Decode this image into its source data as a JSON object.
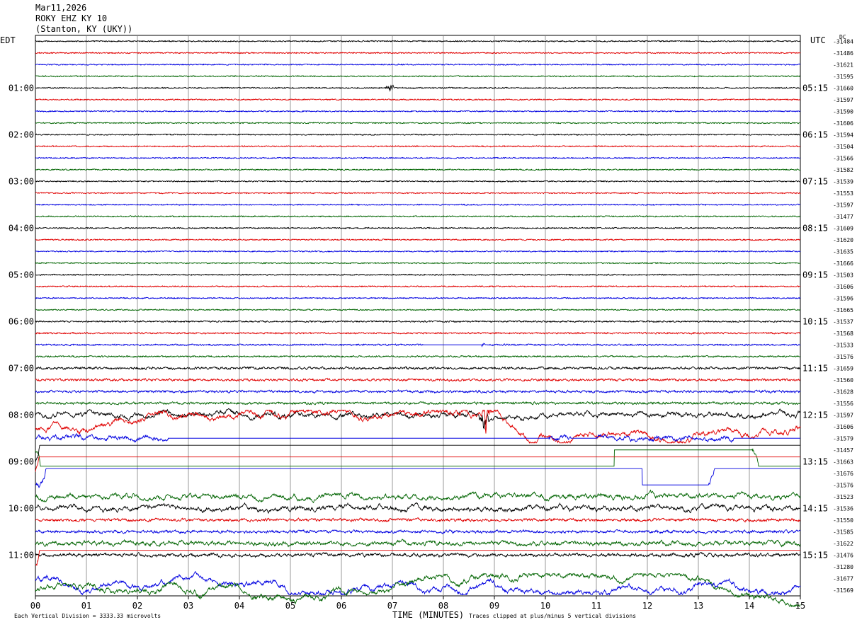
{
  "header": {
    "date": "Mar11,2026",
    "station": "ROKY EHZ KY 10",
    "location": "(Stanton, KY (UKY))"
  },
  "left_tz": "EDT",
  "right_tz": "UTC",
  "dc_label": "DC",
  "footer": {
    "scale_note": "Each Vertical Division = 3333.33 microvolts",
    "xlabel": "TIME (MINUTES)",
    "clip_note": "Traces clipped at plus/minus 5 vertical divisions"
  },
  "colors": {
    "trace_cycle": [
      "#000000",
      "#e00000",
      "#0000e0",
      "#006400"
    ],
    "grid": "#808080"
  },
  "chart_data": {
    "type": "line",
    "xlabel": "TIME (MINUTES)",
    "xlim": [
      0,
      15
    ],
    "x_ticks": [
      "00",
      "01",
      "02",
      "03",
      "04",
      "05",
      "06",
      "07",
      "08",
      "09",
      "10",
      "11",
      "12",
      "13",
      "14",
      "15"
    ],
    "trace_minutes": 15,
    "left_hour_labels": [
      "01:00",
      "02:00",
      "03:00",
      "04:00",
      "05:00",
      "06:00",
      "07:00",
      "08:00",
      "09:00",
      "10:00",
      "11:00"
    ],
    "right_hour_labels": [
      "05:15",
      "06:15",
      "07:15",
      "08:15",
      "09:15",
      "10:15",
      "11:15",
      "12:15",
      "13:15",
      "14:15",
      "15:15"
    ],
    "dc_offsets": [
      "-31484",
      "-31486",
      "-31621",
      "-31595",
      "-31660",
      "-31597",
      "-31590",
      "-31606",
      "-31594",
      "-31504",
      "-31566",
      "-31582",
      "-31539",
      "-31553",
      "-31597",
      "-31477",
      "-31609",
      "-31620",
      "-31635",
      "-31666",
      "-31503",
      "-31606",
      "-31596",
      "-31665",
      "-31537",
      "-31568",
      "-31533",
      "-31576",
      "-31659",
      "-31560",
      "-31628",
      "-31556",
      "-31597",
      "-31606",
      "-31579",
      "-31457",
      "-31663",
      "-31676",
      "-31576",
      "-31523",
      "-31536",
      "-31550",
      "-31585",
      "-31622",
      "-31476",
      "-31280",
      "-31677",
      "-31569"
    ],
    "trace_activity": [
      0.5,
      0.5,
      0.5,
      0.5,
      0.5,
      0.5,
      0.5,
      0.5,
      0.5,
      0.5,
      0.5,
      0.5,
      0.5,
      0.5,
      0.5,
      0.5,
      0.5,
      0.5,
      0.5,
      0.5,
      0.5,
      0.5,
      0.5,
      0.5,
      0.6,
      0.6,
      0.6,
      0.6,
      0.8,
      0.8,
      0.8,
      0.8,
      1.2,
      1.3,
      1.2,
      1.6,
      1.6,
      1.6,
      1.5,
      1.2,
      1.2,
      0.9,
      0.9,
      1.1,
      1.0,
      1.6,
      1.3,
      1.3
    ],
    "events": [
      {
        "trace": 33,
        "minute": 8.85,
        "amplitude": 5
      },
      {
        "trace": 32,
        "minute": 8.8,
        "amplitude": 4
      },
      {
        "trace": 45,
        "minute": 7.9,
        "amplitude": 2
      },
      {
        "trace": 26,
        "minute": 8.7,
        "amplitude": 1.5
      },
      {
        "trace": 4,
        "minute": 6.95,
        "amplitude": 1.5
      }
    ],
    "flat_segments": [
      {
        "trace": 26,
        "from": 7.6,
        "to": 8.75
      },
      {
        "trace": 34,
        "from": 2.6,
        "to": 10.05
      },
      {
        "trace": 34,
        "from": 10.5,
        "to": 11.0
      },
      {
        "trace": 34,
        "from": 13.7,
        "to": 15.0
      },
      {
        "trace": 35,
        "from": 11.35,
        "to": 14.05
      },
      {
        "trace": 38,
        "from": 11.9,
        "to": 13.2
      }
    ]
  }
}
